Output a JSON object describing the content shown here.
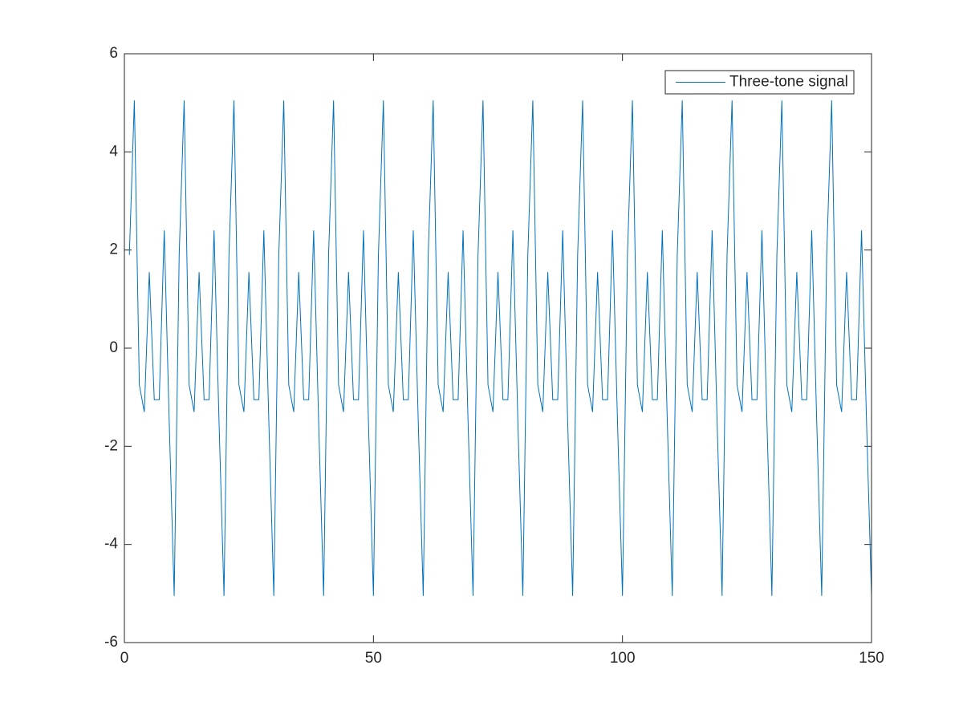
{
  "chart_data": {
    "type": "line",
    "x": [
      1,
      2,
      3,
      4,
      5,
      6,
      7,
      8,
      9,
      10,
      11,
      12,
      13,
      14,
      15,
      16,
      17,
      18,
      19,
      20,
      21,
      22,
      23,
      24,
      25,
      26,
      27,
      28,
      29,
      30,
      31,
      32,
      33,
      34,
      35,
      36,
      37,
      38,
      39,
      40,
      41,
      42,
      43,
      44,
      45,
      46,
      47,
      48,
      49,
      50,
      51,
      52,
      53,
      54,
      55,
      56,
      57,
      58,
      59,
      60,
      61,
      62,
      63,
      64,
      65,
      66,
      67,
      68,
      69,
      70,
      71,
      72,
      73,
      74,
      75,
      76,
      77,
      78,
      79,
      80,
      81,
      82,
      83,
      84,
      85,
      86,
      87,
      88,
      89,
      90,
      91,
      92,
      93,
      94,
      95,
      96,
      97,
      98,
      99,
      100,
      101,
      102,
      103,
      104,
      105,
      106,
      107,
      108,
      109,
      110,
      111,
      112,
      113,
      114,
      115,
      116,
      117,
      118,
      119,
      120,
      121,
      122,
      123,
      124,
      125,
      126,
      127,
      128,
      129,
      130,
      131,
      132,
      133,
      134,
      135,
      136,
      137,
      138,
      139,
      140,
      141,
      142,
      143,
      144,
      145,
      146,
      147,
      148,
      149,
      150
    ],
    "series": [
      {
        "name": "Three-tone signal",
        "color": "#0072bd",
        "values": [
          1.9,
          5.05,
          -0.75,
          -1.3,
          1.55,
          -1.05,
          -1.05,
          2.4,
          -1.5,
          -5.05,
          1.9,
          5.05,
          -0.75,
          -1.3,
          1.55,
          -1.05,
          -1.05,
          2.4,
          -1.5,
          -5.05,
          1.9,
          5.05,
          -0.75,
          -1.3,
          1.55,
          -1.05,
          -1.05,
          2.4,
          -1.5,
          -5.05,
          1.9,
          5.05,
          -0.75,
          -1.3,
          1.55,
          -1.05,
          -1.05,
          2.4,
          -1.5,
          -5.05,
          1.9,
          5.05,
          -0.75,
          -1.3,
          1.55,
          -1.05,
          -1.05,
          2.4,
          -1.5,
          -5.05,
          1.9,
          5.05,
          -0.75,
          -1.3,
          1.55,
          -1.05,
          -1.05,
          2.4,
          -1.5,
          -5.05,
          1.9,
          5.05,
          -0.75,
          -1.3,
          1.55,
          -1.05,
          -1.05,
          2.4,
          -1.5,
          -5.05,
          1.9,
          5.05,
          -0.75,
          -1.3,
          1.55,
          -1.05,
          -1.05,
          2.4,
          -1.5,
          -5.05,
          1.9,
          5.05,
          -0.75,
          -1.3,
          1.55,
          -1.05,
          -1.05,
          2.4,
          -1.5,
          -5.05,
          1.9,
          5.05,
          -0.75,
          -1.3,
          1.55,
          -1.05,
          -1.05,
          2.4,
          -1.5,
          -5.05,
          1.9,
          5.05,
          -0.75,
          -1.3,
          1.55,
          -1.05,
          -1.05,
          2.4,
          -1.5,
          -5.05,
          1.9,
          5.05,
          -0.75,
          -1.3,
          1.55,
          -1.05,
          -1.05,
          2.4,
          -1.5,
          -5.05,
          1.9,
          5.05,
          -0.75,
          -1.3,
          1.55,
          -1.05,
          -1.05,
          2.4,
          -1.5,
          -5.05,
          1.9,
          5.05,
          -0.75,
          -1.3,
          1.55,
          -1.05,
          -1.05,
          2.4,
          -1.5,
          -5.05,
          1.9,
          5.05,
          -0.75,
          -1.3,
          1.55,
          -1.05,
          -1.05,
          2.4,
          -1.5,
          -5.05
        ]
      }
    ],
    "xlim": [
      0,
      150
    ],
    "xticks": [
      0,
      50,
      100,
      150
    ],
    "ylim": [
      -6,
      6
    ],
    "yticks": [
      -6,
      -4,
      -2,
      0,
      2,
      4,
      6
    ],
    "grid": false,
    "legend": "upper-right"
  }
}
